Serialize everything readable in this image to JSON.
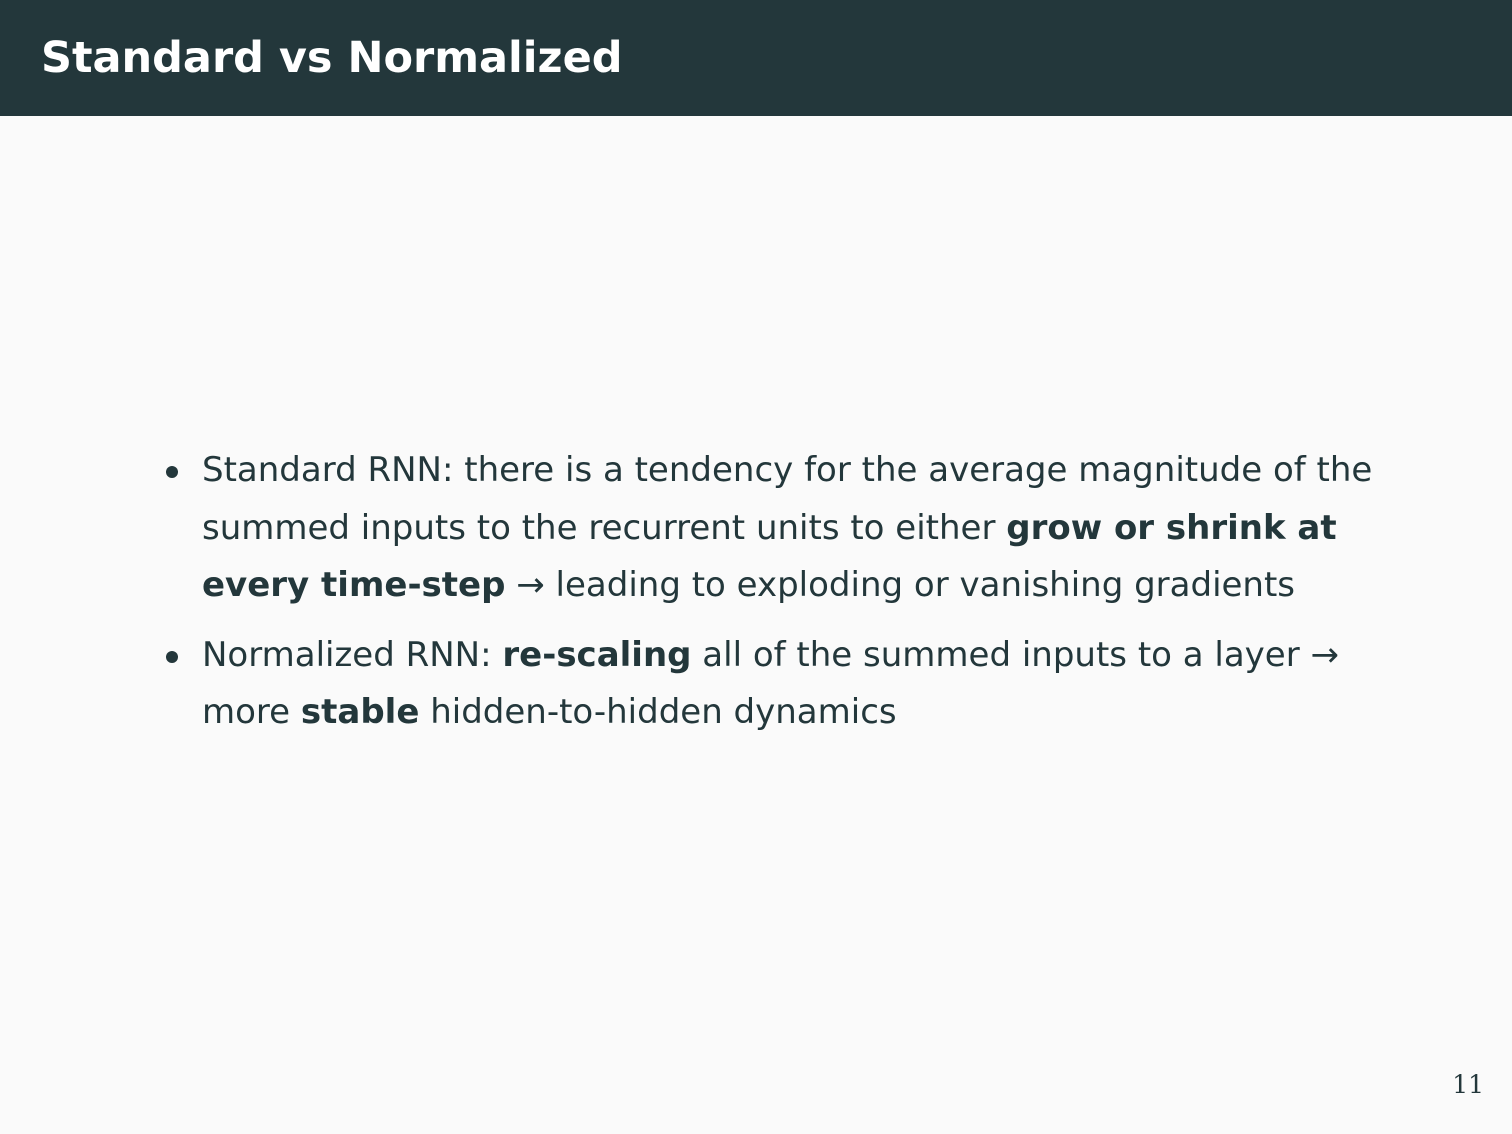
{
  "slide": {
    "title": "Standard vs Normalized",
    "page_number": "11"
  },
  "bullets": [
    {
      "lines": [
        [
          {
            "text": "Standard RNN: there is a tendency for the average magnitude of the",
            "bold": false
          }
        ],
        [
          {
            "text": "summed inputs to the recurrent units to either ",
            "bold": false
          },
          {
            "text": "grow or shrink at",
            "bold": true
          }
        ],
        [
          {
            "text": "every time-step",
            "bold": true
          },
          {
            "text": " → leading to exploding or vanishing gradients",
            "bold": false
          }
        ]
      ]
    },
    {
      "lines": [
        [
          {
            "text": "Normalized RNN: ",
            "bold": false
          },
          {
            "text": "re-scaling",
            "bold": true
          },
          {
            "text": " all of the summed inputs to a layer →",
            "bold": false
          }
        ],
        [
          {
            "text": "more ",
            "bold": false
          },
          {
            "text": "stable",
            "bold": true
          },
          {
            "text": " hidden-to-hidden dynamics",
            "bold": false
          }
        ]
      ]
    }
  ]
}
